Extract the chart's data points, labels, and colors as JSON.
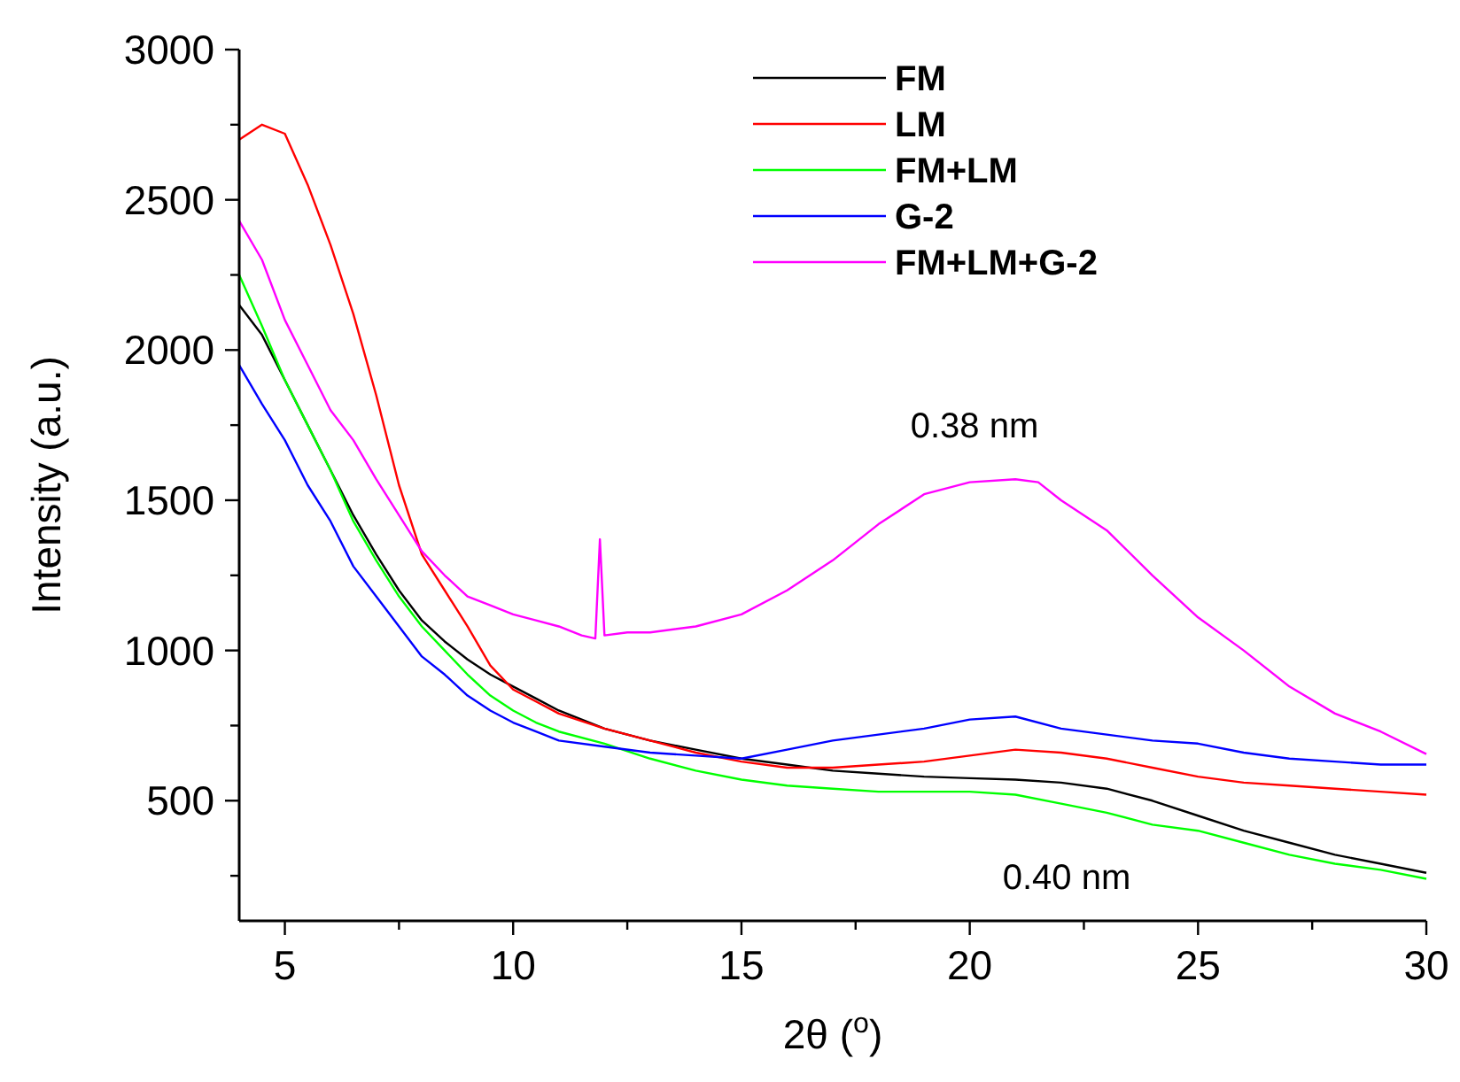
{
  "chart_data": {
    "type": "line",
    "xlabel": "2θ ($^{o}$)",
    "ylabel": "Intensity (a.u.)",
    "xlim": [
      4,
      30
    ],
    "ylim": [
      100,
      3000
    ],
    "xticks": [
      5,
      {
        "value": 7.5,
        "label": null
      },
      10,
      {
        "value": 12.5,
        "label": null
      },
      15,
      {
        "value": 17.5,
        "label": null
      },
      20,
      {
        "value": 22.5,
        "label": null
      },
      25,
      {
        "value": 27.5,
        "label": null
      },
      30
    ],
    "yticks": [
      {
        "value": 250,
        "label": null
      },
      500,
      {
        "value": 750,
        "label": null
      },
      1000,
      {
        "value": 1250,
        "label": null
      },
      1500,
      {
        "value": 1750,
        "label": null
      },
      2000,
      {
        "value": 2250,
        "label": null
      },
      2500,
      {
        "value": 2750,
        "label": null
      },
      3000
    ],
    "legend": "top right",
    "grid": false,
    "line_style": "solid",
    "annotations": [
      "0.38 nm",
      "0.40 nm"
    ],
    "series": [
      {
        "name": "FM",
        "color": "#000000",
        "x": [
          4,
          4.5,
          5,
          5.5,
          6,
          6.5,
          7,
          7.5,
          8,
          8.5,
          9,
          9.5,
          10,
          10.5,
          11,
          11.5,
          12,
          13,
          14,
          15,
          16,
          17,
          18,
          19,
          20,
          21,
          22,
          23,
          24,
          25,
          26,
          27,
          28,
          29,
          30
        ],
        "values": [
          2150,
          2050,
          1900,
          1750,
          1600,
          1450,
          1320,
          1200,
          1100,
          1030,
          970,
          920,
          880,
          840,
          800,
          770,
          740,
          700,
          670,
          640,
          620,
          600,
          590,
          580,
          575,
          570,
          560,
          540,
          500,
          450,
          400,
          360,
          320,
          290,
          260
        ]
      },
      {
        "name": "LM",
        "color": "#ff0000",
        "x": [
          4,
          4.5,
          5,
          5.5,
          6,
          6.5,
          7,
          7.5,
          8,
          8.5,
          9,
          9.5,
          10,
          10.5,
          11,
          12,
          13,
          14,
          15,
          16,
          17,
          18,
          19,
          20,
          21,
          22,
          23,
          24,
          25,
          26,
          27,
          28,
          29,
          30
        ],
        "values": [
          2700,
          2750,
          2720,
          2550,
          2350,
          2120,
          1850,
          1550,
          1320,
          1200,
          1080,
          950,
          870,
          830,
          790,
          740,
          700,
          660,
          630,
          610,
          610,
          620,
          630,
          650,
          670,
          660,
          640,
          610,
          580,
          560,
          550,
          540,
          530,
          520
        ]
      },
      {
        "name": "FM+LM",
        "color": "#00ff00",
        "x": [
          4,
          4.5,
          5,
          5.5,
          6,
          6.5,
          7,
          7.5,
          8,
          8.5,
          9,
          9.5,
          10,
          10.5,
          11,
          12,
          13,
          14,
          15,
          16,
          17,
          18,
          19,
          20,
          21,
          22,
          23,
          24,
          25,
          26,
          27,
          28,
          29,
          30
        ],
        "values": [
          2250,
          2080,
          1900,
          1750,
          1600,
          1430,
          1300,
          1180,
          1080,
          1000,
          920,
          850,
          800,
          760,
          730,
          690,
          640,
          600,
          570,
          550,
          540,
          530,
          530,
          530,
          520,
          490,
          460,
          420,
          400,
          360,
          320,
          290,
          270,
          240
        ]
      },
      {
        "name": "G-2",
        "color": "#0000ff",
        "x": [
          4,
          4.5,
          5,
          5.5,
          6,
          6.5,
          7,
          7.5,
          8,
          8.5,
          9,
          9.5,
          10,
          10.5,
          11,
          12,
          13,
          14,
          15,
          16,
          17,
          18,
          19,
          20,
          21,
          22,
          23,
          24,
          25,
          26,
          27,
          28,
          29,
          30
        ],
        "values": [
          1950,
          1820,
          1700,
          1550,
          1430,
          1280,
          1180,
          1080,
          980,
          920,
          850,
          800,
          760,
          730,
          700,
          680,
          660,
          650,
          640,
          670,
          700,
          720,
          740,
          770,
          780,
          740,
          720,
          700,
          690,
          660,
          640,
          630,
          620,
          620
        ]
      },
      {
        "name": "FM+LM+G-2",
        "color": "#ff00ff",
        "x": [
          4,
          4.5,
          5,
          5.5,
          6,
          6.5,
          7,
          7.5,
          8,
          8.5,
          9,
          9.5,
          10,
          10.5,
          11,
          11.5,
          11.8,
          11.9,
          12,
          12.5,
          13,
          14,
          15,
          16,
          17,
          18,
          19,
          20,
          21,
          21.5,
          22,
          23,
          24,
          25,
          26,
          27,
          28,
          29,
          30
        ],
        "values": [
          2430,
          2300,
          2100,
          1950,
          1800,
          1700,
          1570,
          1450,
          1330,
          1250,
          1180,
          1150,
          1120,
          1100,
          1080,
          1050,
          1040,
          1370,
          1050,
          1060,
          1060,
          1080,
          1120,
          1200,
          1300,
          1420,
          1520,
          1560,
          1570,
          1560,
          1500,
          1400,
          1250,
          1110,
          1000,
          880,
          790,
          730,
          655
        ]
      }
    ]
  }
}
